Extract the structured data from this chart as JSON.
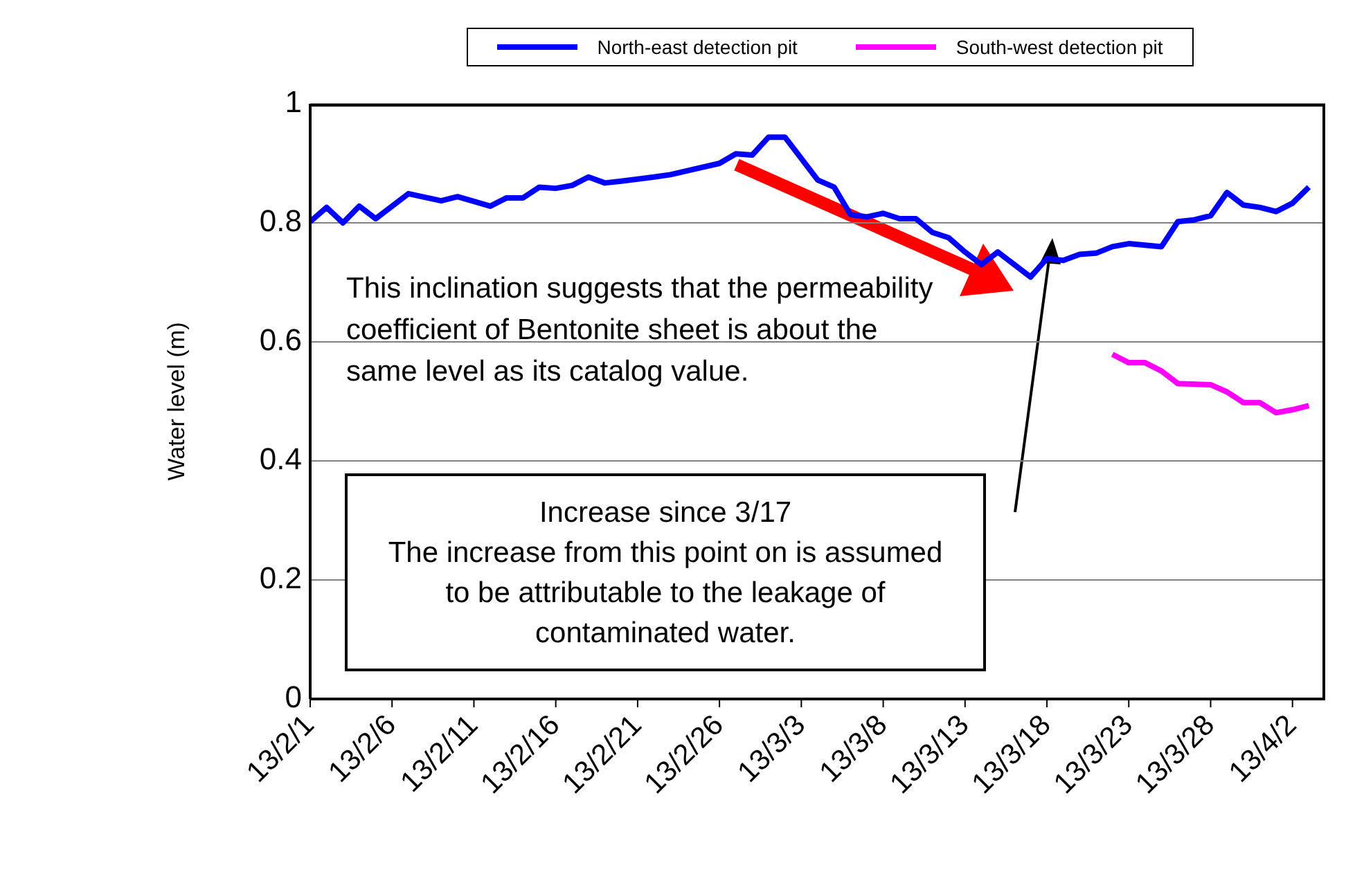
{
  "chart_data": {
    "type": "line",
    "ylabel": "Water level (m)",
    "xlim": [
      "--02-01",
      "--04-04"
    ],
    "xticks": [
      {
        "value": "--02-01",
        "label": "13/2/1"
      },
      {
        "value": "--02-06",
        "label": "13/2/6"
      },
      {
        "value": "--02-11",
        "label": "13/2/11"
      },
      {
        "value": "--02-16",
        "label": "13/2/16"
      },
      {
        "value": "--02-21",
        "label": "13/2/21"
      },
      {
        "value": "--02-26",
        "label": "13/2/26"
      },
      {
        "value": "--03-03",
        "label": "13/3/3"
      },
      {
        "value": "--03-08",
        "label": "13/3/8"
      },
      {
        "value": "--03-13",
        "label": "13/3/13"
      },
      {
        "value": "--03-18",
        "label": "13/3/18"
      },
      {
        "value": "--03-23",
        "label": "13/3/23"
      },
      {
        "value": "--03-28",
        "label": "13/3/28"
      },
      {
        "value": "--04-02",
        "label": "13/4/2"
      }
    ],
    "ylim": [
      0,
      1
    ],
    "yticks": [
      0,
      0.2,
      0.4,
      0.6,
      0.8,
      1
    ],
    "grid": "y",
    "legend": "top",
    "marker": "none",
    "line_style": "solid",
    "series": [
      {
        "name": "North-east detection pit",
        "color": "#0000ff",
        "x": [
          "--02-01",
          "--02-02",
          "--02-03",
          "--02-04",
          "--02-05",
          "--02-07",
          "--02-09",
          "--02-10",
          "--02-12",
          "--02-13",
          "--02-14",
          "--02-15",
          "--02-16",
          "--02-17",
          "--02-18",
          "--02-19",
          "--02-20",
          "--02-22",
          "--02-23",
          "--02-26",
          "--02-27",
          "--02-28",
          "--03-01",
          "--03-02",
          "--03-04",
          "--03-05",
          "--03-06",
          "--03-07",
          "--03-08",
          "--03-09",
          "--03-10",
          "--03-11",
          "--03-12",
          "--03-13",
          "--03-14",
          "--03-15",
          "--03-17",
          "--03-18",
          "--03-19",
          "--03-20",
          "--03-21",
          "--03-22",
          "--03-23",
          "--03-25",
          "--03-26",
          "--03-27",
          "--03-28",
          "--03-29",
          "--03-30",
          "--03-31",
          "--04-01",
          "--04-02",
          "--04-03"
        ],
        "values": [
          0.802,
          0.826,
          0.8,
          0.828,
          0.807,
          0.849,
          0.837,
          0.844,
          0.828,
          0.842,
          0.842,
          0.86,
          0.858,
          0.863,
          0.877,
          0.867,
          0.87,
          0.877,
          0.881,
          0.9,
          0.916,
          0.914,
          0.944,
          0.944,
          0.872,
          0.86,
          0.814,
          0.81,
          0.816,
          0.807,
          0.807,
          0.784,
          0.775,
          0.751,
          0.73,
          0.751,
          0.709,
          0.74,
          0.737,
          0.747,
          0.749,
          0.76,
          0.765,
          0.76,
          0.802,
          0.805,
          0.812,
          0.851,
          0.83,
          0.826,
          0.819,
          0.833,
          0.86
        ]
      },
      {
        "name": "South-west detection pit",
        "color": "#ff00ff",
        "x": [
          "--03-22",
          "--03-23",
          "--03-24",
          "--03-25",
          "--03-26",
          "--03-28",
          "--03-29",
          "--03-30",
          "--03-31",
          "--04-01",
          "--04-02",
          "--04-03"
        ],
        "values": [
          0.579,
          0.565,
          0.565,
          0.551,
          0.53,
          0.528,
          0.516,
          0.498,
          0.498,
          0.481,
          0.486,
          0.493
        ]
      }
    ],
    "annotations": [
      "This inclination suggests that the permeability coefficient of Bentonite sheet is about the same level as its catalog value.",
      "Increase since 3/17",
      "The increase from this point on is assumed to be attributable to the leakage of contaminated water."
    ]
  }
}
